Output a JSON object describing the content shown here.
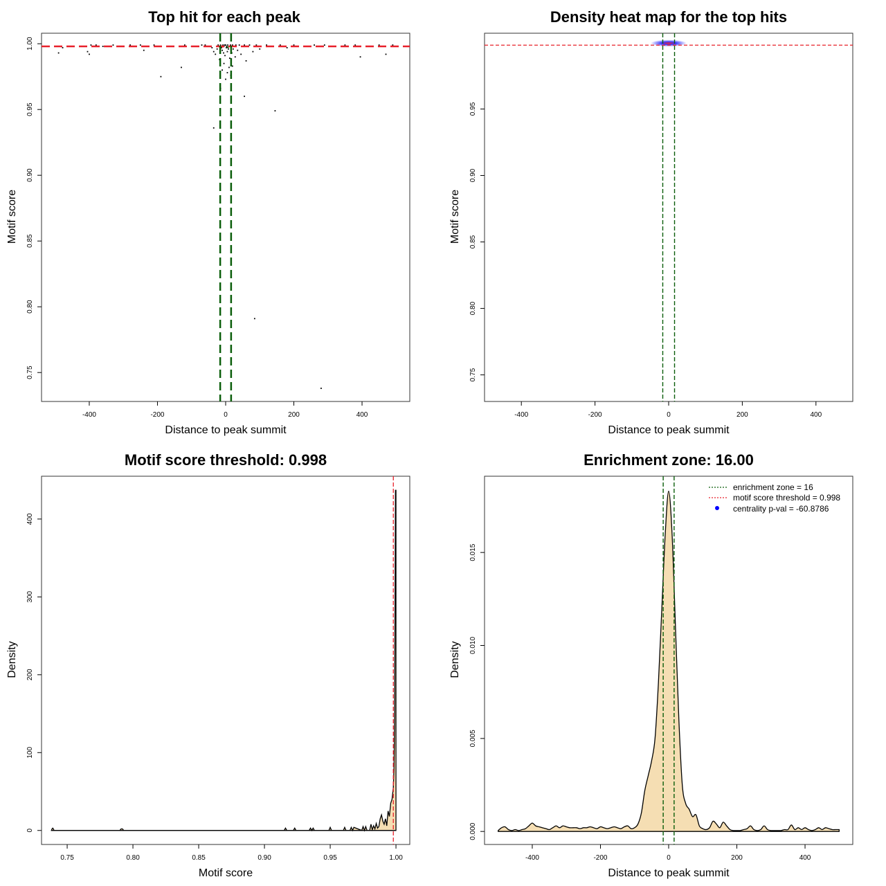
{
  "colors": {
    "threshold_line": "#e8202a",
    "zone_line": "#0a5d0a",
    "density_fill": "#f5deb3",
    "points": "#000000",
    "heat_blue": "#2020ff",
    "heat_red": "#ff2020",
    "legend_dot": "#0000ff"
  },
  "chart_data": [
    {
      "id": "top_hits",
      "type": "scatter",
      "title": "Top hit for each peak",
      "xlabel": "Distance to peak summit",
      "ylabel": "Motif score",
      "xlim": [
        -540,
        540
      ],
      "ylim": [
        0.728,
        1.008
      ],
      "xticks": [
        -400,
        -200,
        0,
        200,
        400
      ],
      "yticks": [
        0.75,
        0.8,
        0.85,
        0.9,
        0.95,
        1.0
      ],
      "xtick_labels": [
        "-400",
        "-200",
        "0",
        "200",
        "400"
      ],
      "ytick_labels": [
        "0.75",
        "0.80",
        "0.85",
        "0.90",
        "0.95",
        "1.00"
      ],
      "hline": 0.998,
      "vlines": [
        -16,
        16
      ],
      "points": [
        [
          -490,
          0.993
        ],
        [
          -478,
          0.997
        ],
        [
          -405,
          0.994
        ],
        [
          -400,
          0.992
        ],
        [
          -395,
          0.999
        ],
        [
          -380,
          0.999
        ],
        [
          -360,
          0.998
        ],
        [
          -330,
          0.999
        ],
        [
          -300,
          0.998
        ],
        [
          -280,
          0.999
        ],
        [
          -250,
          0.999
        ],
        [
          -240,
          0.995
        ],
        [
          -210,
          0.999
        ],
        [
          -190,
          0.975
        ],
        [
          -130,
          0.982
        ],
        [
          -120,
          0.999
        ],
        [
          -100,
          0.998
        ],
        [
          -70,
          0.999
        ],
        [
          -60,
          0.999
        ],
        [
          -50,
          0.998
        ],
        [
          -40,
          0.997
        ],
        [
          -35,
          0.994
        ],
        [
          -30,
          0.992
        ],
        [
          -25,
          0.996
        ],
        [
          -22,
          0.999
        ],
        [
          -20,
          0.998
        ],
        [
          -18,
          0.988
        ],
        [
          -15,
          0.999
        ],
        [
          -12,
          0.997
        ],
        [
          -10,
          0.995
        ],
        [
          -8,
          0.999
        ],
        [
          -6,
          0.993
        ],
        [
          -5,
          0.998
        ],
        [
          -3,
          0.999
        ],
        [
          -2,
          0.991
        ],
        [
          0,
          0.999
        ],
        [
          2,
          0.997
        ],
        [
          3,
          0.998
        ],
        [
          5,
          0.994
        ],
        [
          6,
          0.999
        ],
        [
          8,
          0.996
        ],
        [
          10,
          0.998
        ],
        [
          12,
          0.989
        ],
        [
          14,
          0.999
        ],
        [
          16,
          0.997
        ],
        [
          18,
          0.993
        ],
        [
          20,
          0.999
        ],
        [
          22,
          0.996
        ],
        [
          25,
          0.998
        ],
        [
          28,
          0.99
        ],
        [
          30,
          0.999
        ],
        [
          35,
          0.995
        ],
        [
          40,
          0.999
        ],
        [
          45,
          0.992
        ],
        [
          50,
          0.998
        ],
        [
          55,
          0.999
        ],
        [
          60,
          0.987
        ],
        [
          70,
          0.999
        ],
        [
          80,
          0.994
        ],
        [
          90,
          0.999
        ],
        [
          100,
          0.996
        ],
        [
          120,
          0.999
        ],
        [
          140,
          0.998
        ],
        [
          160,
          0.999
        ],
        [
          180,
          0.997
        ],
        [
          200,
          0.999
        ],
        [
          230,
          0.998
        ],
        [
          260,
          0.999
        ],
        [
          290,
          0.999
        ],
        [
          320,
          0.998
        ],
        [
          350,
          0.999
        ],
        [
          380,
          0.999
        ],
        [
          395,
          0.99
        ],
        [
          420,
          0.998
        ],
        [
          450,
          0.999
        ],
        [
          470,
          0.992
        ],
        [
          490,
          0.999
        ],
        [
          -35,
          0.936
        ],
        [
          -15,
          0.966
        ],
        [
          -10,
          0.98
        ],
        [
          -5,
          0.985
        ],
        [
          0,
          0.973
        ],
        [
          5,
          0.978
        ],
        [
          10,
          0.982
        ],
        [
          15,
          0.976
        ],
        [
          20,
          0.983
        ],
        [
          55,
          0.96
        ],
        [
          145,
          0.949
        ],
        [
          85,
          0.791
        ],
        [
          280,
          0.738
        ]
      ]
    },
    {
      "id": "heatmap",
      "type": "heatmap",
      "title": "Density heat map for the top hits",
      "xlabel": "Distance to peak summit",
      "ylabel": "Motif score",
      "xlim": [
        -500,
        500
      ],
      "ylim": [
        0.73,
        1.007
      ],
      "xticks": [
        -400,
        -200,
        0,
        200,
        400
      ],
      "yticks": [
        0.75,
        0.8,
        0.85,
        0.9,
        0.95
      ],
      "xtick_labels": [
        "-400",
        "-200",
        "0",
        "200",
        "400"
      ],
      "ytick_labels": [
        "0.75",
        "0.80",
        "0.85",
        "0.90",
        "0.95"
      ],
      "hline": 0.998,
      "vlines": [
        -16,
        16
      ],
      "hotspot": {
        "x": 0,
        "y": 0.9995
      }
    },
    {
      "id": "score_density",
      "type": "area",
      "title": "Motif score threshold: 0.998",
      "xlabel": "Motif score",
      "ylabel": "Density",
      "xlim": [
        0.7305,
        1.0105
      ],
      "ylim": [
        -18,
        455
      ],
      "xticks": [
        0.75,
        0.8,
        0.85,
        0.9,
        0.95,
        1.0
      ],
      "yticks": [
        0,
        100,
        200,
        300,
        400
      ],
      "xtick_labels": [
        "0.75",
        "0.80",
        "0.85",
        "0.90",
        "0.95",
        "1.00"
      ],
      "ytick_labels": [
        "0",
        "100",
        "200",
        "300",
        "400"
      ],
      "vline": 0.998,
      "x": [
        0.738,
        0.7385,
        0.739,
        0.7395,
        0.74,
        0.79,
        0.791,
        0.792,
        0.793,
        0.915,
        0.916,
        0.917,
        0.922,
        0.923,
        0.924,
        0.934,
        0.935,
        0.936,
        0.937,
        0.938,
        0.949,
        0.95,
        0.951,
        0.96,
        0.961,
        0.962,
        0.965,
        0.966,
        0.967,
        0.968,
        0.974,
        0.975,
        0.976,
        0.977,
        0.978,
        0.98,
        0.981,
        0.982,
        0.983,
        0.984,
        0.985,
        0.986,
        0.987,
        0.988,
        0.989,
        0.99,
        0.991,
        0.992,
        0.993,
        0.994,
        0.995,
        0.996,
        0.997,
        0.998,
        0.9985,
        0.999,
        0.9993,
        0.9996,
        1.0
      ],
      "y": [
        0,
        2,
        3,
        2,
        0,
        0,
        2,
        2,
        0,
        0,
        3,
        0,
        0,
        3,
        0,
        0,
        3,
        0,
        3,
        0,
        0,
        4,
        0,
        0,
        4,
        0,
        0,
        4,
        0,
        4,
        0,
        5,
        0,
        5,
        0,
        0,
        8,
        1,
        6,
        2,
        9,
        3,
        5,
        15,
        20,
        12,
        8,
        15,
        6,
        25,
        18,
        35,
        40,
        55,
        80,
        150,
        300,
        437,
        437
      ]
    },
    {
      "id": "distance_density",
      "type": "area",
      "title": "Enrichment zone: 16.00",
      "xlabel": "Distance to peak summit",
      "ylabel": "Density",
      "xlim": [
        -540,
        540
      ],
      "ylim": [
        -0.0007,
        0.0191
      ],
      "xticks": [
        -400,
        -200,
        0,
        200,
        400
      ],
      "yticks": [
        0.0,
        0.005,
        0.01,
        0.015
      ],
      "xtick_labels": [
        "-400",
        "-200",
        "0",
        "200",
        "400"
      ],
      "ytick_labels": [
        "0.000",
        "0.005",
        "0.010",
        "0.015"
      ],
      "vlines": [
        -16,
        16
      ],
      "x": [
        -500,
        -490,
        -480,
        -470,
        -460,
        -450,
        -440,
        -430,
        -420,
        -410,
        -400,
        -390,
        -380,
        -370,
        -360,
        -350,
        -340,
        -330,
        -320,
        -310,
        -300,
        -290,
        -280,
        -270,
        -260,
        -250,
        -240,
        -230,
        -220,
        -210,
        -200,
        -190,
        -180,
        -170,
        -160,
        -150,
        -140,
        -130,
        -120,
        -110,
        -100,
        -90,
        -80,
        -70,
        -60,
        -50,
        -40,
        -30,
        -20,
        -10,
        0,
        10,
        20,
        30,
        40,
        50,
        60,
        70,
        80,
        90,
        100,
        110,
        120,
        130,
        140,
        150,
        160,
        170,
        180,
        190,
        200,
        210,
        220,
        230,
        240,
        250,
        260,
        270,
        280,
        290,
        300,
        310,
        320,
        330,
        340,
        350,
        360,
        370,
        380,
        390,
        400,
        410,
        420,
        430,
        440,
        450,
        460,
        470,
        480,
        490,
        500
      ],
      "y": [
        5e-05,
        0.0002,
        0.00025,
        0.0001,
        5e-05,
        0.0001,
        5e-05,
        0.0001,
        0.00015,
        0.0003,
        0.00045,
        0.0003,
        0.00025,
        0.0002,
        0.00015,
        0.0001,
        0.0002,
        0.0003,
        0.0002,
        0.0003,
        0.00025,
        0.0002,
        0.0002,
        0.0002,
        0.00015,
        0.0002,
        0.0002,
        0.00025,
        0.0002,
        0.00015,
        0.00025,
        0.0002,
        0.00015,
        0.0002,
        0.00025,
        0.0002,
        0.00015,
        0.00025,
        0.0003,
        0.00015,
        0.0002,
        0.0004,
        0.001,
        0.0022,
        0.003,
        0.0038,
        0.005,
        0.008,
        0.012,
        0.016,
        0.0183,
        0.016,
        0.011,
        0.006,
        0.0025,
        0.0015,
        0.0012,
        0.0008,
        0.0009,
        0.0003,
        0.00015,
        0.0001,
        0.0002,
        0.00055,
        0.0004,
        0.0002,
        0.0005,
        0.0003,
        0.0001,
        5e-05,
        5e-05,
        5e-05,
        0.0001,
        0.00015,
        0.0003,
        0.0001,
        5e-05,
        0.0001,
        0.0003,
        0.0001,
        5e-05,
        5e-05,
        5e-05,
        5e-05,
        0.0001,
        0.0001,
        0.00035,
        0.0001,
        0.0002,
        0.0001,
        0.0002,
        0.0001,
        5e-05,
        0.0001,
        0.0002,
        0.0001,
        0.0002,
        0.00015,
        0.0001,
        0.0001,
        0.0001
      ],
      "legend": [
        {
          "label": "enrichment zone = 16",
          "kind": "dotted-green"
        },
        {
          "label": "motif score threshold = 0.998",
          "kind": "dotted-red"
        },
        {
          "label": "centrality p-val = -60.8786",
          "kind": "dot-blue"
        }
      ]
    }
  ]
}
